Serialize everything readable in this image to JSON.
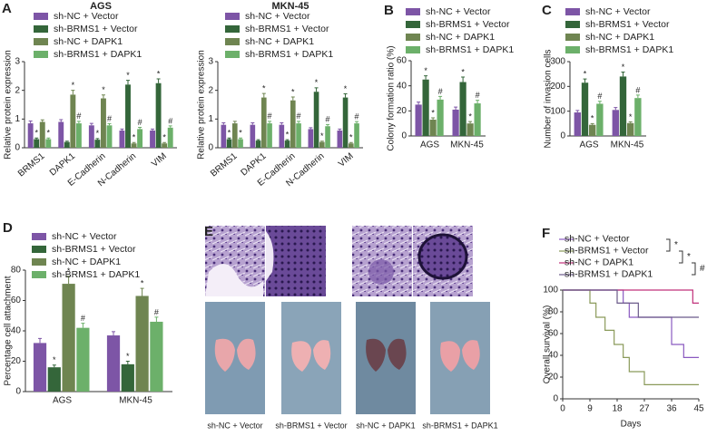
{
  "chart_data": [
    {
      "type": "bar",
      "panel": "A",
      "title": "AGS",
      "ylabel": "Relative protein expression",
      "categories": [
        "BRMS1",
        "DAPK1",
        "E-Cadherin",
        "N-Cadherin",
        "VIM"
      ],
      "ylim": [
        0,
        3
      ],
      "yticks": [
        0,
        1,
        2,
        3
      ],
      "series": [
        {
          "name": "sh-NC + Vector",
          "color": "#7d55a6",
          "values": [
            0.85,
            0.9,
            0.78,
            0.6,
            0.6
          ],
          "errors": [
            0.08,
            0.08,
            0.07,
            0.05,
            0.05
          ],
          "sig": [
            null,
            null,
            null,
            null,
            null
          ]
        },
        {
          "name": "sh-BRMS1 + Vector",
          "color": "#34663a",
          "values": [
            0.3,
            0.2,
            0.28,
            2.2,
            2.25
          ],
          "errors": [
            0.04,
            0.03,
            0.04,
            0.15,
            0.15
          ],
          "sig": [
            "*",
            null,
            "*",
            "*",
            "*"
          ]
        },
        {
          "name": "sh-NC + DAPK1",
          "color": "#6f8551",
          "values": [
            0.9,
            1.85,
            1.72,
            0.15,
            0.15
          ],
          "errors": [
            0.07,
            0.15,
            0.12,
            0.03,
            0.03
          ],
          "sig": [
            null,
            "*",
            "*",
            "*",
            "*"
          ]
        },
        {
          "name": "sh-BRMS1 + DAPK1",
          "color": "#6cb06a",
          "values": [
            0.3,
            0.85,
            0.78,
            0.65,
            0.7
          ],
          "errors": [
            0.04,
            0.07,
            0.06,
            0.06,
            0.06
          ],
          "sig": [
            "*",
            "#",
            "#",
            "#",
            "#"
          ]
        }
      ]
    },
    {
      "type": "bar",
      "title": "MKN-45",
      "ylabel": "Relative protein expression",
      "categories": [
        "BRMS1",
        "DAPK1",
        "E-Cadherin",
        "N-Cadherin",
        "VIM"
      ],
      "ylim": [
        0,
        3
      ],
      "yticks": [
        0,
        1,
        2,
        3
      ],
      "series": [
        {
          "name": "sh-NC + Vector",
          "color": "#7d55a6",
          "values": [
            0.8,
            0.8,
            0.8,
            0.65,
            0.6
          ],
          "errors": [
            0.07,
            0.07,
            0.07,
            0.05,
            0.05
          ],
          "sig": [
            null,
            null,
            null,
            null,
            null
          ]
        },
        {
          "name": "sh-BRMS1 + Vector",
          "color": "#34663a",
          "values": [
            0.3,
            0.25,
            0.25,
            1.95,
            1.75
          ],
          "errors": [
            0.04,
            0.03,
            0.03,
            0.14,
            0.13
          ],
          "sig": [
            "*",
            null,
            "*",
            "*",
            "*"
          ]
        },
        {
          "name": "sh-NC + DAPK1",
          "color": "#6f8551",
          "values": [
            0.85,
            1.75,
            1.65,
            0.2,
            0.15
          ],
          "errors": [
            0.07,
            0.14,
            0.12,
            0.03,
            0.03
          ],
          "sig": [
            null,
            "*",
            "*",
            "*",
            "*"
          ]
        },
        {
          "name": "sh-BRMS1 + DAPK1",
          "color": "#6cb06a",
          "values": [
            0.3,
            0.85,
            0.85,
            0.75,
            0.85
          ],
          "errors": [
            0.04,
            0.07,
            0.07,
            0.06,
            0.06
          ],
          "sig": [
            "*",
            "#",
            "#",
            "#",
            "#"
          ]
        }
      ]
    },
    {
      "type": "bar",
      "panel": "B",
      "ylabel": "Colony formation ratio (%)",
      "categories": [
        "AGS",
        "MKN-45"
      ],
      "ylim": [
        0,
        60
      ],
      "yticks": [
        0,
        20,
        40,
        60
      ],
      "series": [
        {
          "name": "sh-NC + Vector",
          "color": "#7d55a6",
          "values": [
            25,
            21
          ],
          "errors": [
            2,
            2
          ],
          "sig": [
            null,
            null
          ]
        },
        {
          "name": "sh-BRMS1 + Vector",
          "color": "#34663a",
          "values": [
            45,
            43
          ],
          "errors": [
            3,
            4
          ],
          "sig": [
            "*",
            "*"
          ]
        },
        {
          "name": "sh-NC + DAPK1",
          "color": "#6f8551",
          "values": [
            13,
            10
          ],
          "errors": [
            1.5,
            1.5
          ],
          "sig": [
            "*",
            "*"
          ]
        },
        {
          "name": "sh-BRMS1 + DAPK1",
          "color": "#6cb06a",
          "values": [
            29,
            26
          ],
          "errors": [
            2.5,
            2.5
          ],
          "sig": [
            "#",
            "#"
          ]
        }
      ]
    },
    {
      "type": "bar",
      "panel": "C",
      "ylabel": "Number of invasion cells",
      "categories": [
        "AGS",
        "MKN-45"
      ],
      "ylim": [
        0,
        300
      ],
      "yticks": [
        0,
        100,
        200,
        300
      ],
      "series": [
        {
          "name": "sh-NC + Vector",
          "color": "#7d55a6",
          "values": [
            95,
            105
          ],
          "errors": [
            8,
            10
          ],
          "sig": [
            null,
            null
          ]
        },
        {
          "name": "sh-BRMS1 + Vector",
          "color": "#34663a",
          "values": [
            215,
            240
          ],
          "errors": [
            15,
            18
          ],
          "sig": [
            "*",
            "*"
          ]
        },
        {
          "name": "sh-NC + DAPK1",
          "color": "#6f8551",
          "values": [
            45,
            52
          ],
          "errors": [
            5,
            5
          ],
          "sig": [
            "*",
            "*"
          ]
        },
        {
          "name": "sh-BRMS1 + DAPK1",
          "color": "#6cb06a",
          "values": [
            130,
            153
          ],
          "errors": [
            10,
            12
          ],
          "sig": [
            "#",
            "#"
          ]
        }
      ]
    },
    {
      "type": "bar",
      "panel": "D",
      "ylabel": "Percentage cell attachment",
      "categories": [
        "AGS",
        "MKN-45"
      ],
      "ylim": [
        0,
        80
      ],
      "yticks": [
        0,
        20,
        40,
        60,
        80
      ],
      "series": [
        {
          "name": "sh-NC + Vector",
          "color": "#7d55a6",
          "values": [
            32,
            37
          ],
          "errors": [
            3,
            2.5
          ],
          "sig": [
            null,
            null
          ]
        },
        {
          "name": "sh-BRMS1 + Vector",
          "color": "#34663a",
          "values": [
            16,
            18
          ],
          "errors": [
            1.5,
            2
          ],
          "sig": [
            "*",
            "*"
          ]
        },
        {
          "name": "sh-NC + DAPK1",
          "color": "#6f8551",
          "values": [
            71,
            63
          ],
          "errors": [
            5,
            5
          ],
          "sig": [
            "*",
            "*"
          ]
        },
        {
          "name": "sh-BRMS1 + DAPK1",
          "color": "#6cb06a",
          "values": [
            42,
            46
          ],
          "errors": [
            3,
            3
          ],
          "sig": [
            "#",
            "#"
          ]
        }
      ]
    },
    {
      "type": "line",
      "panel": "F",
      "ylabel": "Overall survival (%)",
      "xlabel": "Days",
      "xlim": [
        0,
        45
      ],
      "xticks": [
        0,
        9,
        18,
        27,
        36,
        45
      ],
      "ylim": [
        0,
        100
      ],
      "yticks": [
        0,
        20,
        40,
        60,
        80,
        100
      ],
      "annotations": [
        "*",
        "*",
        "#"
      ],
      "series": [
        {
          "name": "sh-NC + Vector",
          "color": "#8a5ac0",
          "x": [
            0,
            20,
            22,
            36,
            40,
            45
          ],
          "values": [
            100,
            88,
            75,
            50,
            38,
            38
          ]
        },
        {
          "name": "sh-BRMS1 + Vector",
          "color": "#8a9a5a",
          "x": [
            0,
            9,
            11,
            14,
            17,
            20,
            22,
            27,
            45
          ],
          "values": [
            100,
            88,
            75,
            63,
            50,
            38,
            25,
            13,
            13
          ]
        },
        {
          "name": "sh-NC + DAPK1",
          "color": "#c0307a",
          "x": [
            0,
            43,
            45
          ],
          "values": [
            100,
            88,
            88
          ]
        },
        {
          "name": "sh-BRMS1 + DAPK1",
          "color": "#6b5a8a",
          "x": [
            0,
            18,
            25,
            45
          ],
          "values": [
            100,
            88,
            75,
            75
          ]
        }
      ]
    }
  ],
  "figure_e": {
    "panel": "E",
    "captions": [
      "sh-NC + Vector",
      "sh-BRMS1 + Vector",
      "sh-NC + DAPK1",
      "sh-BRMS1 + DAPK1"
    ]
  }
}
